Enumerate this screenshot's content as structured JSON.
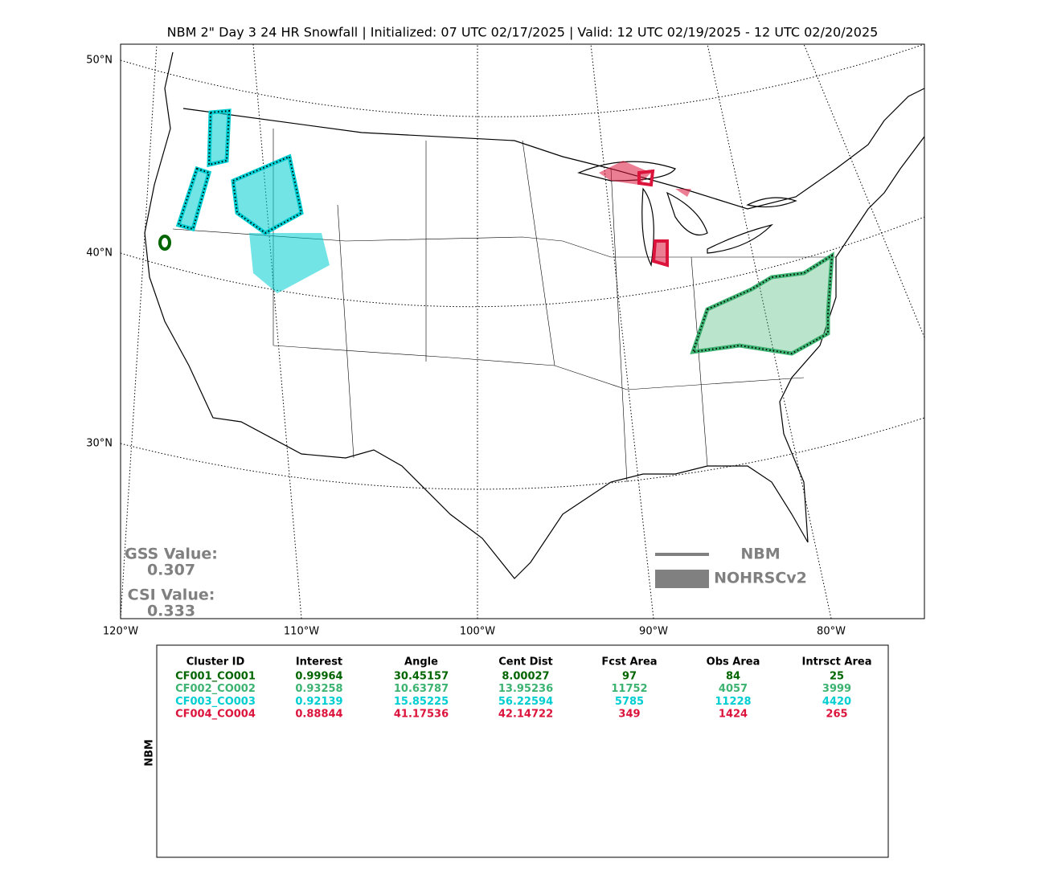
{
  "map": {
    "title": "NBM 2\" Day 3 24 HR Snowfall | Initialized: 07 UTC 02/17/2025 | Valid: 12 UTC 02/19/2025 - 12 UTC 02/20/2025",
    "lat_labels": [
      "50°N",
      "40°N",
      "30°N"
    ],
    "lon_labels": [
      "120°W",
      "110°W",
      "100°W",
      "90°W",
      "80°W"
    ],
    "gss": {
      "label": "GSS Value:",
      "value": "0.307"
    },
    "csi": {
      "label": "CSI Value:",
      "value": "0.333"
    },
    "legend": [
      {
        "name": "NBM",
        "color": "#808080"
      },
      {
        "name": "NOHRSCv2",
        "color": "#808080"
      }
    ]
  },
  "table": {
    "side_label": "NBM",
    "header": [
      "Cluster ID",
      "Interest",
      "Angle",
      "Cent Dist",
      "Fcst Area",
      "Obs Area",
      "Intrsct Area"
    ],
    "rows": [
      [
        "CF001_CO001",
        "0.99964",
        "30.45157",
        "8.00027",
        "97",
        "84",
        "25"
      ],
      [
        "CF002_CO002",
        "0.93258",
        "10.63787",
        "13.95236",
        "11752",
        "4057",
        "3999"
      ],
      [
        "CF003_CO003",
        "0.92139",
        "15.85225",
        "56.22594",
        "5785",
        "11228",
        "4420"
      ],
      [
        "CF004_CO004",
        "0.88844",
        "41.17536",
        "42.14722",
        "349",
        "1424",
        "265"
      ]
    ],
    "row_colors": [
      "#006400",
      "#3cb371",
      "#00ced1",
      "#dc143c"
    ]
  }
}
